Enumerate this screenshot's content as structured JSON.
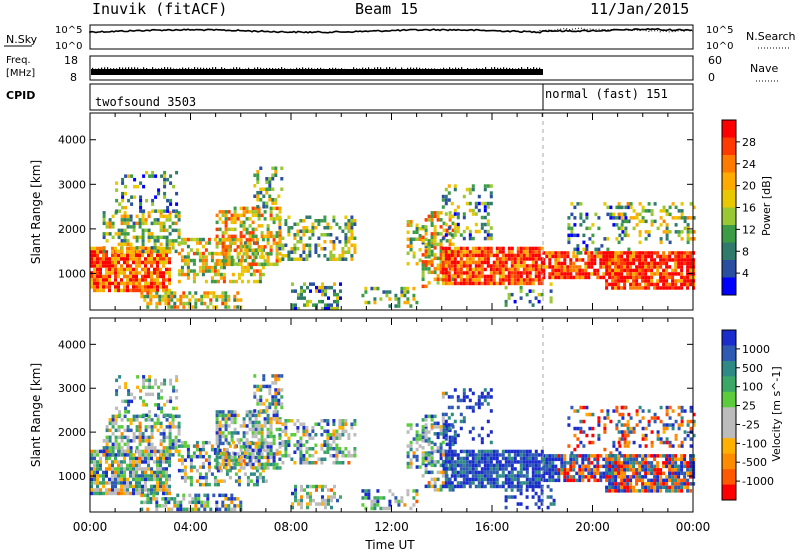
{
  "header": {
    "station": "Inuvik (fitACF)",
    "beam": "Beam 15",
    "date": "11/Jan/2015"
  },
  "top_panels": {
    "nsky_label": "N.Sky",
    "nsearch_label": "N.Search",
    "freq_label_1": "Freq.",
    "freq_label_2": "[MHz]",
    "nave_label": "Nave",
    "cpid_label": "CPID",
    "noise_ticks_left": [
      "10^5",
      "10^0"
    ],
    "noise_ticks_right": [
      "10^5",
      "10^0"
    ],
    "freq_ticks": [
      "18",
      "8"
    ],
    "nave_ticks": [
      "60",
      "0"
    ],
    "cpid_segments": [
      {
        "label": "twofsound 3503",
        "start": 0,
        "end": 18
      },
      {
        "label": "normal (fast) 151",
        "start": 18,
        "end": 24
      }
    ]
  },
  "colorbars": {
    "power": {
      "label": "Power [dB]",
      "ticks": [
        "28",
        "24",
        "20",
        "16",
        "12",
        "8",
        "4"
      ],
      "colors": [
        "#ff0000",
        "#ff3a00",
        "#ff7a00",
        "#ffaa00",
        "#e8c800",
        "#98c834",
        "#3c9c46",
        "#2f7a6a",
        "#2a4fa0",
        "#0000ff"
      ]
    },
    "velocity": {
      "label": "Velocity [m s^-1]",
      "ticks": [
        "1000",
        "500",
        "100",
        "25",
        "-25",
        "-100",
        "-500",
        "-1000"
      ],
      "colors": [
        "#1a2ccc",
        "#2e5ab4",
        "#2f8a86",
        "#3ca868",
        "#5ccc3c",
        "#bcbcbc",
        "#bcbcbc",
        "#ffb000",
        "#ff8c00",
        "#ff5a00",
        "#ff0000"
      ]
    }
  },
  "chart_data": [
    {
      "type": "heatmap",
      "parameter": "Power",
      "ylabel": "Slant Range [km]",
      "ylim": [
        180,
        4600
      ],
      "yticks": [
        1000,
        2000,
        3000,
        4000
      ],
      "xlim": [
        0,
        24
      ],
      "xticks": [
        "00:00",
        "04:00",
        "08:00",
        "12:00",
        "16:00",
        "20:00",
        "00:00"
      ],
      "colorbar_range": [
        0,
        30
      ]
    },
    {
      "type": "heatmap",
      "parameter": "Velocity",
      "ylabel": "Slant Range [km]",
      "xlabel": "Time UT",
      "ylim": [
        180,
        4600
      ],
      "yticks": [
        1000,
        2000,
        3000,
        4000
      ],
      "xlim": [
        0,
        24
      ],
      "xticks": [
        "00:00",
        "04:00",
        "08:00",
        "12:00",
        "16:00",
        "20:00",
        "00:00"
      ],
      "colorbar_range": [
        -1000,
        1000
      ]
    }
  ]
}
